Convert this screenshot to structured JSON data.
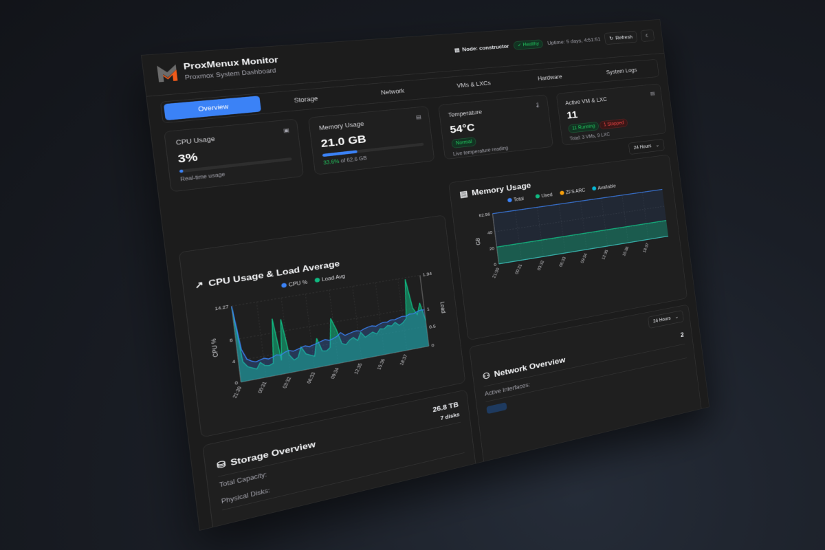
{
  "app": {
    "title": "ProxMenux Monitor",
    "subtitle": "Proxmox System Dashboard"
  },
  "header": {
    "node_label": "Node: constructor",
    "status": "Healthy",
    "uptime": "Uptime: 5 days, 4:51:51",
    "refresh_label": "Refresh",
    "theme_icon": "moon-icon"
  },
  "tabs": [
    {
      "label": "Overview",
      "active": true
    },
    {
      "label": "Storage"
    },
    {
      "label": "Network"
    },
    {
      "label": "VMs & LXCs"
    },
    {
      "label": "Hardware"
    },
    {
      "label": "System Logs"
    }
  ],
  "cards": {
    "cpu": {
      "label": "CPU Usage",
      "value": "3%",
      "percent": 3,
      "sub": "Real-time usage"
    },
    "memory": {
      "label": "Memory Usage",
      "value": "21.0 GB",
      "percent": 33.6,
      "percent_text": "33.6%",
      "of_text": "of 62.6 GB"
    },
    "temperature": {
      "label": "Temperature",
      "value": "54°C",
      "status": "Normal",
      "sub": "Live temperature reading"
    },
    "vms": {
      "label": "Active VM & LXC",
      "value": "11",
      "running": "11 Running",
      "stopped": "1 Stopped",
      "sub": "Total: 3 VMs, 9 LXC"
    }
  },
  "time_range": "24 Hours",
  "colors": {
    "accent": "#3b82f6",
    "green": "#10b981",
    "orange": "#f59e0b",
    "cyan": "#06b6d4",
    "red": "#ef4444"
  },
  "chart_data": [
    {
      "type": "line",
      "title": "CPU Usage & Load Average",
      "ylabel": "CPU %",
      "y2label": "Load",
      "x_ticks": [
        "21:30",
        "00:31",
        "03:32",
        "06:33",
        "09:34",
        "12:35",
        "15:36",
        "18:37"
      ],
      "ylim": [
        0,
        14.27
      ],
      "y_ticks": [
        "0",
        "4",
        "8",
        "14.27"
      ],
      "y2lim": [
        0,
        1.94
      ],
      "y2_ticks": [
        "0",
        "0.5",
        "1",
        "1.94"
      ],
      "grid": true,
      "legend": "top",
      "series": [
        {
          "name": "CPU %",
          "axis": "left",
          "color": "#3b82f6",
          "values": [
            14.2,
            6,
            4,
            3.5,
            3.2,
            3.4,
            3.6,
            3.3,
            3.5,
            3.8,
            3.6,
            4,
            4.2,
            3.9,
            4.1,
            4.3,
            4.5,
            4.2,
            4.4,
            4.6,
            4.8,
            5,
            4.7,
            4.9,
            5.2,
            5.8,
            5.1,
            5.3,
            5.5,
            5.6,
            5.4,
            5.7,
            5.9,
            6,
            5.8,
            6.1,
            6.3,
            6.2,
            6.5,
            6.4,
            6.6,
            6.8,
            6.7,
            7,
            6.9,
            7.2,
            7.4,
            7.3
          ]
        },
        {
          "name": "Load Avg",
          "axis": "right",
          "color": "#10b981",
          "values": [
            1.9,
            0.5,
            0.35,
            0.3,
            0.25,
            0.4,
            0.3,
            0.28,
            0.32,
            1.45,
            0.35,
            1.4,
            0.45,
            0.3,
            0.35,
            0.6,
            0.4,
            0.35,
            0.3,
            0.75,
            0.4,
            0.38,
            0.45,
            1.2,
            0.9,
            0.5,
            0.45,
            0.55,
            0.6,
            0.5,
            0.7,
            0.55,
            0.6,
            0.65,
            0.58,
            0.7,
            0.68,
            0.75,
            0.72,
            0.8,
            0.7,
            0.75,
            0.85,
            1.9,
            1.1,
            0.9,
            1.2,
            0.7
          ]
        }
      ]
    },
    {
      "type": "area",
      "title": "Memory Usage",
      "ylabel": "GB",
      "x_ticks": [
        "21:30",
        "00:31",
        "03:32",
        "06:33",
        "09:34",
        "12:35",
        "15:36",
        "18:37"
      ],
      "ylim": [
        0,
        62.56
      ],
      "y_ticks": [
        "0",
        "20",
        "40",
        "62.56"
      ],
      "grid": true,
      "legend": "top",
      "series": [
        {
          "name": "Total",
          "color": "#3b82f6",
          "values": [
            62.56,
            62.56
          ]
        },
        {
          "name": "Used",
          "color": "#10b981",
          "values": [
            21,
            21
          ]
        },
        {
          "name": "ZFS ARC",
          "color": "#f59e0b",
          "values": [
            0,
            0
          ]
        },
        {
          "name": "Available",
          "color": "#06b6d4",
          "values": [
            0,
            0
          ]
        }
      ]
    }
  ],
  "storage": {
    "title": "Storage Overview",
    "capacity": "26.8 TB",
    "disks": "7 disks",
    "capacity_label": "Total Capacity:",
    "disks_label": "Physical Disks:"
  },
  "network": {
    "title": "Network Overview",
    "count": "2",
    "interfaces_label": "Active Interfaces:",
    "time_range": "24 Hours"
  }
}
